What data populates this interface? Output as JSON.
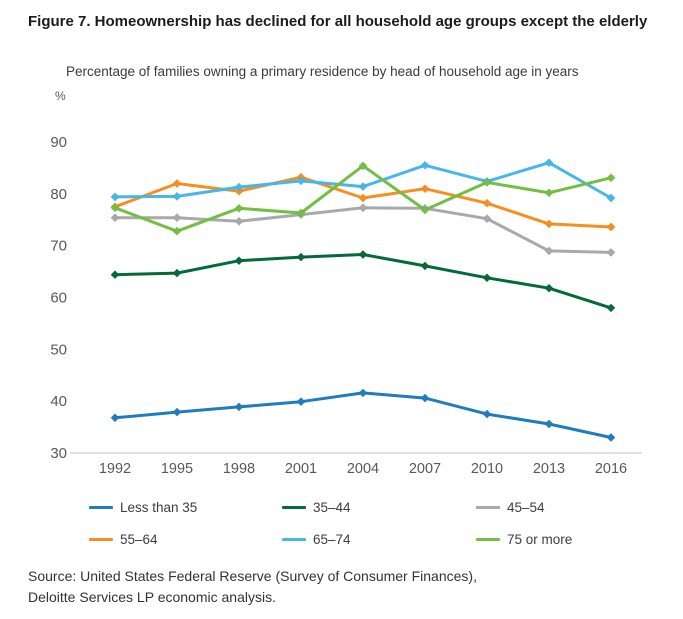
{
  "figure": {
    "title": "Figure 7. Homeownership has declined for all household age groups except the elderly",
    "subtitle": "Percentage of families owning a primary residence by head of household age in years",
    "percent_label": "%",
    "source": "Source: United States Federal Reserve (Survey of Consumer Finances), Deloitte Services LP economic analysis."
  },
  "chart_data": {
    "type": "line",
    "title": "Percentage of families owning a primary residence by head of household age in years",
    "xlabel": "",
    "ylabel": "%",
    "x": [
      1992,
      1995,
      1998,
      2001,
      2004,
      2007,
      2010,
      2013,
      2016
    ],
    "series": [
      {
        "name": "Less than 35",
        "color": "#1e7dbf",
        "values": [
          36.8,
          37.9,
          38.9,
          39.9,
          41.6,
          40.6,
          37.5,
          35.6,
          33.0
        ]
      },
      {
        "name": "35–44",
        "color": "#046a38",
        "values": [
          64.4,
          64.7,
          67.1,
          67.8,
          68.3,
          66.1,
          63.8,
          61.8,
          58.0
        ]
      },
      {
        "name": "45–54",
        "color": "#a7a9ab",
        "values": [
          75.4,
          75.4,
          74.7,
          76.0,
          77.3,
          77.2,
          75.2,
          69.0,
          68.7
        ]
      },
      {
        "name": "55–64",
        "color": "#f78f1e",
        "values": [
          77.5,
          82.0,
          80.5,
          83.2,
          79.2,
          81.0,
          78.2,
          74.2,
          73.6
        ]
      },
      {
        "name": "65–74",
        "color": "#45b7e9",
        "values": [
          79.4,
          79.5,
          81.3,
          82.5,
          81.4,
          85.5,
          82.4,
          86.0,
          79.2
        ]
      },
      {
        "name": "75 or more",
        "color": "#72bf44",
        "values": [
          77.3,
          72.8,
          77.2,
          76.3,
          85.4,
          76.9,
          82.2,
          80.2,
          83.1
        ]
      }
    ],
    "ylim": [
      30,
      90
    ],
    "yticks": [
      30,
      40,
      50,
      60,
      70,
      80,
      90
    ],
    "grid": false,
    "legend_position": "bottom",
    "axis_color": "#d7d7d7"
  }
}
